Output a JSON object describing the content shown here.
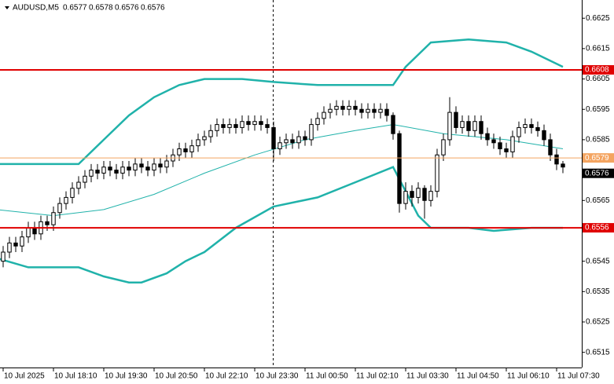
{
  "chart_data": {
    "type": "candlestick",
    "symbol": "AUDUSD,M5",
    "ohlc": [
      0.6577,
      0.6578,
      0.6576,
      0.6576
    ],
    "xlim": [
      -0.5,
      92
    ],
    "ylim": [
      0.651,
      0.6631
    ],
    "yticks": [
      0.6625,
      0.6615,
      0.6605,
      0.6595,
      0.6585,
      0.6565,
      0.6545,
      0.6535,
      0.6525,
      0.6515
    ],
    "xticks": [
      {
        "value": 0,
        "label": "10 Jul 2025"
      },
      {
        "value": 8,
        "label": "10 Jul 18:10"
      },
      {
        "value": 16,
        "label": "10 Jul 19:30"
      },
      {
        "value": 24,
        "label": "10 Jul 20:50"
      },
      {
        "value": 32,
        "label": "10 Jul 22:10"
      },
      {
        "value": 40,
        "label": "10 Jul 23:30"
      },
      {
        "value": 48,
        "label": "11 Jul 00:50"
      },
      {
        "value": 56,
        "label": "11 Jul 02:10"
      },
      {
        "value": 64,
        "label": "11 Jul 03:30"
      },
      {
        "value": 72,
        "label": "11 Jul 04:50"
      },
      {
        "value": 80,
        "label": "11 Jul 06:10"
      },
      {
        "value": 88,
        "label": "11 Jul 07:30"
      }
    ],
    "open": [
      0.6545,
      0.6548,
      0.6551,
      0.655,
      0.6553,
      0.6556,
      0.6554,
      0.6558,
      0.6557,
      0.6561,
      0.6564,
      0.6566,
      0.6569,
      0.6571,
      0.6573,
      0.6575,
      0.6574,
      0.6576,
      0.6575,
      0.6574,
      0.6576,
      0.6575,
      0.6577,
      0.6576,
      0.6575,
      0.6577,
      0.6576,
      0.6578,
      0.658,
      0.6582,
      0.6581,
      0.6583,
      0.6585,
      0.6586,
      0.6588,
      0.659,
      0.6589,
      0.659,
      0.6589,
      0.6591,
      0.659,
      0.6591,
      0.659,
      0.6589,
      0.6582,
      0.6584,
      0.6585,
      0.6584,
      0.6586,
      0.6585,
      0.659,
      0.6592,
      0.6594,
      0.6595,
      0.6596,
      0.6595,
      0.6596,
      0.6595,
      0.6594,
      0.6595,
      0.6594,
      0.6595,
      0.6593,
      0.6587,
      0.6564,
      0.6568,
      0.6566,
      0.6569,
      0.6565,
      0.6568,
      0.658,
      0.6585,
      0.6594,
      0.6589,
      0.6591,
      0.6588,
      0.6591,
      0.6587,
      0.6585,
      0.6584,
      0.6582,
      0.6581,
      0.6586,
      0.6589,
      0.659,
      0.6589,
      0.6588,
      0.6585,
      0.658,
      0.6577
    ],
    "high": [
      0.655,
      0.6553,
      0.6553,
      0.6555,
      0.6558,
      0.6558,
      0.656,
      0.656,
      0.6563,
      0.6566,
      0.6568,
      0.6571,
      0.6573,
      0.6575,
      0.6577,
      0.6577,
      0.6578,
      0.6578,
      0.6577,
      0.6578,
      0.6578,
      0.6579,
      0.6579,
      0.6578,
      0.6579,
      0.6579,
      0.658,
      0.6582,
      0.6584,
      0.6584,
      0.6585,
      0.6587,
      0.6588,
      0.659,
      0.6592,
      0.6592,
      0.6592,
      0.6592,
      0.6593,
      0.6593,
      0.6593,
      0.6593,
      0.6592,
      0.6591,
      0.6586,
      0.6587,
      0.6587,
      0.6588,
      0.6588,
      0.6592,
      0.6594,
      0.6596,
      0.6597,
      0.6598,
      0.6598,
      0.6598,
      0.6598,
      0.6597,
      0.6597,
      0.6597,
      0.6597,
      0.6597,
      0.6594,
      0.6588,
      0.6571,
      0.657,
      0.6571,
      0.657,
      0.657,
      0.6582,
      0.6587,
      0.6599,
      0.6596,
      0.6593,
      0.6593,
      0.6593,
      0.6593,
      0.6589,
      0.6587,
      0.6586,
      0.6584,
      0.6588,
      0.6591,
      0.6592,
      0.6592,
      0.6591,
      0.659,
      0.6587,
      0.6582,
      0.6578
    ],
    "low": [
      0.6543,
      0.6546,
      0.6548,
      0.6548,
      0.6551,
      0.6552,
      0.6552,
      0.6555,
      0.6555,
      0.6559,
      0.6562,
      0.6564,
      0.6567,
      0.6569,
      0.6571,
      0.6572,
      0.6572,
      0.6573,
      0.6572,
      0.6572,
      0.6573,
      0.6573,
      0.6574,
      0.6573,
      0.6573,
      0.6574,
      0.6574,
      0.6576,
      0.6578,
      0.6579,
      0.6579,
      0.6581,
      0.6583,
      0.6584,
      0.6586,
      0.6587,
      0.6587,
      0.6587,
      0.6587,
      0.6588,
      0.6588,
      0.6588,
      0.6587,
      0.6578,
      0.658,
      0.6582,
      0.6582,
      0.6582,
      0.6583,
      0.6583,
      0.6588,
      0.659,
      0.6592,
      0.6593,
      0.6593,
      0.6593,
      0.6593,
      0.6592,
      0.6592,
      0.6592,
      0.6592,
      0.6591,
      0.6585,
      0.6561,
      0.6562,
      0.6563,
      0.6564,
      0.6559,
      0.6563,
      0.6566,
      0.6578,
      0.6583,
      0.6587,
      0.6587,
      0.6586,
      0.6586,
      0.6585,
      0.6583,
      0.6582,
      0.658,
      0.6579,
      0.6579,
      0.6584,
      0.6587,
      0.6587,
      0.6586,
      0.6583,
      0.6578,
      0.6575,
      0.6574
    ],
    "close": [
      0.6548,
      0.6551,
      0.655,
      0.6553,
      0.6556,
      0.6554,
      0.6558,
      0.6557,
      0.6561,
      0.6564,
      0.6566,
      0.6569,
      0.6571,
      0.6573,
      0.6575,
      0.6574,
      0.6576,
      0.6575,
      0.6574,
      0.6576,
      0.6575,
      0.6577,
      0.6576,
      0.6575,
      0.6577,
      0.6576,
      0.6578,
      0.658,
      0.6582,
      0.6581,
      0.6583,
      0.6585,
      0.6586,
      0.6588,
      0.659,
      0.6589,
      0.659,
      0.6589,
      0.6591,
      0.659,
      0.6591,
      0.659,
      0.6589,
      0.6582,
      0.6584,
      0.6585,
      0.6584,
      0.6586,
      0.6585,
      0.659,
      0.6592,
      0.6594,
      0.6595,
      0.6596,
      0.6595,
      0.6596,
      0.6595,
      0.6594,
      0.6595,
      0.6594,
      0.6595,
      0.6593,
      0.6587,
      0.6564,
      0.6568,
      0.6566,
      0.6569,
      0.6565,
      0.6568,
      0.658,
      0.6585,
      0.6594,
      0.6589,
      0.6591,
      0.6588,
      0.6591,
      0.6587,
      0.6585,
      0.6584,
      0.6582,
      0.6581,
      0.6586,
      0.6589,
      0.659,
      0.6589,
      0.6588,
      0.6585,
      0.658,
      0.6577,
      0.6576
    ],
    "bands": [
      {
        "color": "#20b2aa",
        "width": 2.5,
        "x": [
          -1,
          4,
          12,
          16,
          20,
          24,
          28,
          32,
          38,
          43,
          50,
          56,
          62,
          64,
          66,
          68,
          74,
          80,
          84,
          89
        ],
        "values": [
          0.6577,
          0.6577,
          0.6577,
          0.6585,
          0.6593,
          0.6599,
          0.6603,
          0.6605,
          0.6605,
          0.6604,
          0.6603,
          0.6603,
          0.6603,
          0.6609,
          0.6613,
          0.6617,
          0.6618,
          0.6617,
          0.6614,
          0.6609
        ]
      },
      {
        "color": "#20b2aa",
        "width": 1,
        "x": [
          -1,
          8,
          16,
          24,
          32,
          40,
          48,
          56,
          62,
          70,
          80,
          89
        ],
        "values": [
          0.6562,
          0.656,
          0.6562,
          0.6567,
          0.6574,
          0.658,
          0.6585,
          0.6588,
          0.659,
          0.6587,
          0.6585,
          0.6582
        ]
      },
      {
        "color": "#20b2aa",
        "width": 2.5,
        "x": [
          -1,
          4,
          12,
          16,
          20,
          22,
          26,
          29,
          32,
          37,
          43,
          50,
          56,
          62,
          64,
          66,
          68,
          74,
          78,
          84,
          89
        ],
        "values": [
          0.6546,
          0.6543,
          0.6543,
          0.654,
          0.6538,
          0.6538,
          0.6541,
          0.6545,
          0.6548,
          0.6556,
          0.6563,
          0.6566,
          0.6571,
          0.6576,
          0.6568,
          0.656,
          0.6556,
          0.6556,
          0.6555,
          0.6556,
          0.6556
        ]
      }
    ],
    "levels": [
      {
        "value": 0.6608,
        "color": "#e00000",
        "width": 2
      },
      {
        "value": 0.6556,
        "color": "#e00000",
        "width": 2
      },
      {
        "value": 0.6579,
        "color": "#f4a460",
        "width": 1
      }
    ],
    "price": 0.6576
  }
}
